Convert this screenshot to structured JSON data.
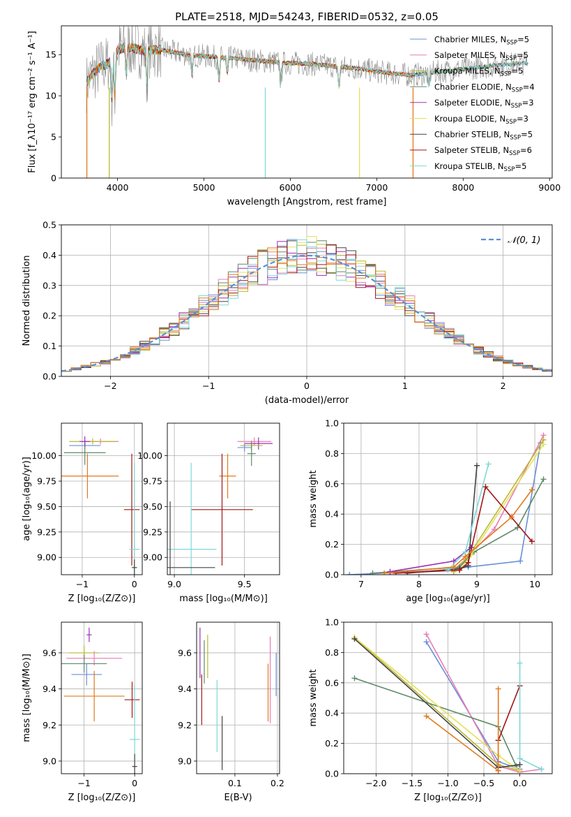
{
  "figure_title": "PLATE=2518, MJD=54243, FIBERID=0532, z=0.05",
  "colors": {
    "cm": "#6a8fd8",
    "sm": "#e87db5",
    "km": "#b9b830",
    "ce": "#5e8a68",
    "se": "#9b30b5",
    "ke": "#e6e05a",
    "cs": "#444444",
    "ss": "#a11616",
    "ks": "#7ed8d8",
    "orange": "#e07a1f",
    "gray": "#8a8a8a",
    "gauss": "#5b8fd6"
  },
  "chart_data": [
    {
      "id": "spectrum",
      "type": "line",
      "title": "PLATE=2518, MJD=54243, FIBERID=0532, z=0.05",
      "xlabel": "wavelength [Angstrom, rest frame]",
      "ylabel": "Flux [f_λ10⁻¹⁷ erg cm⁻² s⁻¹ A⁻¹]",
      "xlim": [
        3350,
        9030
      ],
      "ylim": [
        0,
        18.5
      ],
      "xticks": [
        4000,
        5000,
        6000,
        7000,
        8000,
        9000
      ],
      "yticks": [
        0,
        5,
        10,
        15
      ],
      "grid": false,
      "legend_position": "top-right",
      "legend": [
        {
          "key": "cm",
          "label": "Chabrier MILES, N",
          "nssp": "=5"
        },
        {
          "key": "sm",
          "label": "Salpeter MILES, N",
          "nssp": "=5"
        },
        {
          "key": "km",
          "label": "Kroupa MILES, N",
          "nssp": "=5"
        },
        {
          "key": "ce",
          "label": "Chabrier ELODIE, N",
          "nssp": "=4"
        },
        {
          "key": "se",
          "label": "Salpeter ELODIE, N",
          "nssp": "=3"
        },
        {
          "key": "ke",
          "label": "Kroupa ELODIE, N",
          "nssp": "=3"
        },
        {
          "key": "cs",
          "label": "Chabrier STELIB, N",
          "nssp": "=5"
        },
        {
          "key": "ss",
          "label": "Salpeter STELIB, N",
          "nssp": "=6"
        },
        {
          "key": "ks",
          "label": "Kroupa STELIB, N",
          "nssp": "=5"
        }
      ],
      "nssp_subscript": "SSP",
      "continuum": [
        [
          3640,
          11.5
        ],
        [
          3700,
          12.5
        ],
        [
          3800,
          13.5
        ],
        [
          3900,
          14.0
        ],
        [
          4000,
          15.5
        ],
        [
          4100,
          16.0
        ],
        [
          4300,
          15.5
        ],
        [
          4500,
          15.6
        ],
        [
          4800,
          15.0
        ],
        [
          5000,
          14.8
        ],
        [
          5300,
          14.6
        ],
        [
          5600,
          14.3
        ],
        [
          5900,
          14.0
        ],
        [
          6200,
          13.9
        ],
        [
          6500,
          13.6
        ],
        [
          6800,
          13.3
        ],
        [
          7100,
          12.8
        ],
        [
          7400,
          12.5
        ],
        [
          7800,
          13.0
        ],
        [
          8200,
          13.5
        ],
        [
          8500,
          13.8
        ],
        [
          8750,
          14.0
        ]
      ]
    },
    {
      "id": "residuals",
      "type": "histogram",
      "xlabel": "(data-model)/error",
      "ylabel": "Normed distribution",
      "xlim": [
        -2.5,
        2.5
      ],
      "ylim": [
        0,
        0.5
      ],
      "xticks": [
        -2,
        -1,
        0,
        1,
        2
      ],
      "yticks": [
        0.0,
        0.1,
        0.2,
        0.3,
        0.4,
        0.5
      ],
      "grid": true,
      "legend_position": "top-right",
      "gaussian_label": "𝒩(0, 1)",
      "bin_width": 0.1
    },
    {
      "id": "age_vs_z",
      "type": "errorbar",
      "xlabel": "Z [log₁₀(Z/Z⊙)]",
      "ylabel": "age  [log₁₀(age/yr)]",
      "xlim": [
        -1.4,
        0.15
      ],
      "ylim": [
        8.83,
        10.32
      ],
      "xticks": [
        -1,
        0
      ],
      "yticks": [
        9.0,
        9.25,
        9.5,
        9.75,
        10.0
      ],
      "grid": true,
      "points": [
        {
          "key": "sm",
          "x": -0.65,
          "xerr": 0.35,
          "y": 10.14,
          "yerr": 0.03
        },
        {
          "key": "km",
          "x": -0.8,
          "xerr": 0.45,
          "y": 10.14,
          "yerr": 0.03
        },
        {
          "key": "cm",
          "x": -0.95,
          "xerr": 0.3,
          "y": 10.1,
          "yerr": 0.03
        },
        {
          "key": "ce",
          "x": -0.95,
          "xerr": 0.4,
          "y": 10.03,
          "yerr": 0.12
        },
        {
          "key": "se",
          "x": -0.95,
          "xerr": 0.1,
          "y": 10.14,
          "yerr": 0.05
        },
        {
          "key": "orange",
          "x": -0.9,
          "xerr": 0.6,
          "y": 9.8,
          "yerr": 0.22
        },
        {
          "key": "ss",
          "x": -0.05,
          "xerr": 0.15,
          "y": 9.47,
          "yerr": 0.55
        },
        {
          "key": "ks",
          "x": 0.0,
          "xerr": 0.1,
          "y": 9.08,
          "yerr": 0.85
        },
        {
          "key": "cs",
          "x": 0.0,
          "xerr": 0.05,
          "y": 8.9,
          "yerr": 0.08
        }
      ]
    },
    {
      "id": "age_vs_mass",
      "type": "errorbar",
      "xlabel": "mass [log₁₀(M/M⊙)]",
      "ylabel": "",
      "xlim": [
        8.95,
        9.75
      ],
      "ylim": [
        8.83,
        10.32
      ],
      "xticks": [
        9.0,
        9.5
      ],
      "yticks": [
        9.0,
        9.25,
        9.5,
        9.75,
        10.0
      ],
      "grid": true,
      "points": [
        {
          "key": "sm",
          "x": 9.57,
          "xerr": 0.12,
          "y": 10.14,
          "yerr": 0.04
        },
        {
          "key": "se",
          "x": 9.6,
          "xerr": 0.1,
          "y": 10.12,
          "yerr": 0.06
        },
        {
          "key": "km",
          "x": 9.55,
          "xerr": 0.08,
          "y": 10.1,
          "yerr": 0.05
        },
        {
          "key": "cm",
          "x": 9.5,
          "xerr": 0.05,
          "y": 10.08,
          "yerr": 0.04
        },
        {
          "key": "ce",
          "x": 9.55,
          "xerr": 0.03,
          "y": 10.02,
          "yerr": 0.12
        },
        {
          "key": "orange",
          "x": 9.38,
          "xerr": 0.06,
          "y": 9.8,
          "yerr": 0.22
        },
        {
          "key": "ss",
          "x": 9.34,
          "xerr": 0.22,
          "y": 9.47,
          "yerr": 0.55
        },
        {
          "key": "ks",
          "x": 9.12,
          "xerr": 0.18,
          "y": 9.08,
          "yerr": 0.85
        },
        {
          "key": "cs",
          "x": 8.97,
          "xerr": 0.32,
          "y": 8.9,
          "yerr": 0.65
        }
      ]
    },
    {
      "id": "weight_vs_age",
      "type": "line",
      "xlabel": "age  [log₁₀(age/yr)]",
      "ylabel": "mass weight",
      "xlim": [
        6.7,
        10.3
      ],
      "ylim": [
        0,
        1
      ],
      "xticks": [
        7,
        8,
        9,
        10
      ],
      "yticks": [
        0.0,
        0.2,
        0.4,
        0.6,
        0.8,
        1.0
      ],
      "grid": true,
      "series": [
        {
          "key": "cm",
          "points": [
            [
              6.8,
              0.0
            ],
            [
              8.5,
              0.03
            ],
            [
              8.85,
              0.05
            ],
            [
              9.75,
              0.09
            ],
            [
              10.1,
              0.87
            ]
          ]
        },
        {
          "key": "sm",
          "points": [
            [
              7.5,
              0.01
            ],
            [
              8.6,
              0.03
            ],
            [
              8.8,
              0.1
            ],
            [
              9.3,
              0.3
            ],
            [
              10.15,
              0.92
            ]
          ]
        },
        {
          "key": "km",
          "points": [
            [
              8.6,
              0.02
            ],
            [
              8.85,
              0.12
            ],
            [
              10.15,
              0.89
            ]
          ]
        },
        {
          "key": "ce",
          "points": [
            [
              7.2,
              0.01
            ],
            [
              8.7,
              0.05
            ],
            [
              8.95,
              0.15
            ],
            [
              9.7,
              0.31
            ],
            [
              10.15,
              0.63
            ]
          ]
        },
        {
          "key": "se",
          "points": [
            [
              7.5,
              0.02
            ],
            [
              8.6,
              0.09
            ],
            [
              8.9,
              0.18
            ]
          ]
        },
        {
          "key": "ke",
          "points": [
            [
              8.7,
              0.03
            ],
            [
              8.9,
              0.13
            ],
            [
              10.15,
              0.86
            ]
          ]
        },
        {
          "key": "cs",
          "points": [
            [
              7.8,
              0.01
            ],
            [
              8.7,
              0.04
            ],
            [
              8.85,
              0.06
            ],
            [
              9.0,
              0.72
            ]
          ]
        },
        {
          "key": "ss",
          "points": [
            [
              7.6,
              0.01
            ],
            [
              8.7,
              0.03
            ],
            [
              8.85,
              0.08
            ],
            [
              9.15,
              0.58
            ],
            [
              9.95,
              0.22
            ]
          ]
        },
        {
          "key": "ks",
          "points": [
            [
              8.5,
              0.03
            ],
            [
              8.8,
              0.15
            ],
            [
              9.2,
              0.73
            ]
          ]
        },
        {
          "key": "orange",
          "points": [
            [
              7.4,
              0.01
            ],
            [
              8.6,
              0.05
            ],
            [
              8.8,
              0.12
            ],
            [
              9.6,
              0.38
            ],
            [
              9.95,
              0.56
            ]
          ]
        }
      ]
    },
    {
      "id": "mass_vs_z",
      "type": "errorbar",
      "xlabel": "Z [log₁₀(Z/Z⊙)]",
      "ylabel": "mass [log₁₀(M/M⊙)]",
      "xlim": [
        -1.45,
        0.15
      ],
      "ylim": [
        8.93,
        9.77
      ],
      "xticks": [
        -1,
        0
      ],
      "yticks": [
        9.0,
        9.2,
        9.4,
        9.6
      ],
      "grid": true,
      "points": [
        {
          "key": "se",
          "x": -0.9,
          "xerr": 0.05,
          "y": 9.7,
          "yerr": 0.04
        },
        {
          "key": "km",
          "x": -1.0,
          "xerr": 0.3,
          "y": 9.6,
          "yerr": 0.04
        },
        {
          "key": "sm",
          "x": -0.8,
          "xerr": 0.55,
          "y": 9.57,
          "yerr": 0.04
        },
        {
          "key": "ce",
          "x": -1.0,
          "xerr": 0.45,
          "y": 9.54,
          "yerr": 0.05
        },
        {
          "key": "cm",
          "x": -0.95,
          "xerr": 0.3,
          "y": 9.48,
          "yerr": 0.06
        },
        {
          "key": "orange",
          "x": -0.8,
          "xerr": 0.6,
          "y": 9.36,
          "yerr": 0.14
        },
        {
          "key": "ss",
          "x": -0.05,
          "xerr": 0.15,
          "y": 9.34,
          "yerr": 0.1
        },
        {
          "key": "ks",
          "x": 0.0,
          "xerr": 0.1,
          "y": 9.12,
          "yerr": 0.3
        },
        {
          "key": "cs",
          "x": 0.0,
          "xerr": 0.05,
          "y": 8.97,
          "yerr": 0.07
        }
      ]
    },
    {
      "id": "mass_vs_ebv",
      "type": "errorbar",
      "xlabel": "E(B-V)",
      "ylabel": "",
      "xlim": [
        0.01,
        0.205
      ],
      "ylim": [
        8.93,
        9.77
      ],
      "xticks": [
        0.1,
        0.2
      ],
      "yticks": [
        9.0,
        9.2,
        9.4,
        9.6
      ],
      "grid": true,
      "points": [
        {
          "key": "se",
          "x": 0.018,
          "xerr": 0.0,
          "y": 9.6,
          "yerr": 0.14
        },
        {
          "key": "ss",
          "x": 0.022,
          "xerr": 0.0,
          "y": 9.34,
          "yerr": 0.14
        },
        {
          "key": "ce",
          "x": 0.028,
          "xerr": 0.0,
          "y": 9.55,
          "yerr": 0.12
        },
        {
          "key": "km",
          "x": 0.036,
          "xerr": 0.0,
          "y": 9.58,
          "yerr": 0.12
        },
        {
          "key": "ks",
          "x": 0.058,
          "xerr": 0.0,
          "y": 9.25,
          "yerr": 0.2
        },
        {
          "key": "cs",
          "x": 0.07,
          "xerr": 0.0,
          "y": 9.1,
          "yerr": 0.15
        },
        {
          "key": "orange",
          "x": 0.178,
          "xerr": 0.0,
          "y": 9.38,
          "yerr": 0.16
        },
        {
          "key": "sm",
          "x": 0.183,
          "xerr": 0.0,
          "y": 9.45,
          "yerr": 0.24
        },
        {
          "key": "cm",
          "x": 0.197,
          "xerr": 0.0,
          "y": 9.48,
          "yerr": 0.12
        }
      ]
    },
    {
      "id": "weight_vs_z",
      "type": "line",
      "xlabel": "Z [log₁₀(Z/Z⊙)]",
      "ylabel": "mass weight",
      "xlim": [
        -2.45,
        0.45
      ],
      "ylim": [
        0,
        1
      ],
      "xticks": [
        -2.0,
        -1.5,
        -1.0,
        -0.5,
        0.0
      ],
      "yticks": [
        0.0,
        0.2,
        0.4,
        0.6,
        0.8,
        1.0
      ],
      "grid": true,
      "series": [
        {
          "key": "cm",
          "points": [
            [
              -1.3,
              0.87
            ],
            [
              -0.3,
              0.08
            ],
            [
              0.0,
              0.03
            ]
          ]
        },
        {
          "key": "sm",
          "points": [
            [
              -1.3,
              0.92
            ],
            [
              -0.3,
              0.05
            ],
            [
              0.0,
              0.01
            ],
            [
              0.3,
              0.03
            ]
          ]
        },
        {
          "key": "km",
          "points": [
            [
              -2.3,
              0.9
            ],
            [
              -0.3,
              0.06
            ],
            [
              0.0,
              0.02
            ]
          ]
        },
        {
          "key": "ce",
          "points": [
            [
              -2.3,
              0.63
            ],
            [
              -0.3,
              0.31
            ],
            [
              -0.05,
              0.05
            ]
          ]
        },
        {
          "key": "ke",
          "points": [
            [
              -2.3,
              0.9
            ],
            [
              -0.3,
              0.12
            ],
            [
              0.0,
              0.02
            ]
          ]
        },
        {
          "key": "cs",
          "points": [
            [
              -2.3,
              0.89
            ],
            [
              -0.3,
              0.04
            ],
            [
              0.0,
              0.06
            ]
          ]
        },
        {
          "key": "ss",
          "points": [
            [
              -0.3,
              0.02
            ],
            [
              -0.3,
              0.22
            ],
            [
              0.0,
              0.58
            ]
          ]
        },
        {
          "key": "ks",
          "points": [
            [
              0.0,
              0.73
            ],
            [
              0.0,
              0.1
            ],
            [
              0.3,
              0.03
            ]
          ]
        },
        {
          "key": "orange",
          "points": [
            [
              -1.3,
              0.38
            ],
            [
              -0.3,
              0.02
            ],
            [
              -0.3,
              0.56
            ]
          ]
        }
      ]
    }
  ]
}
